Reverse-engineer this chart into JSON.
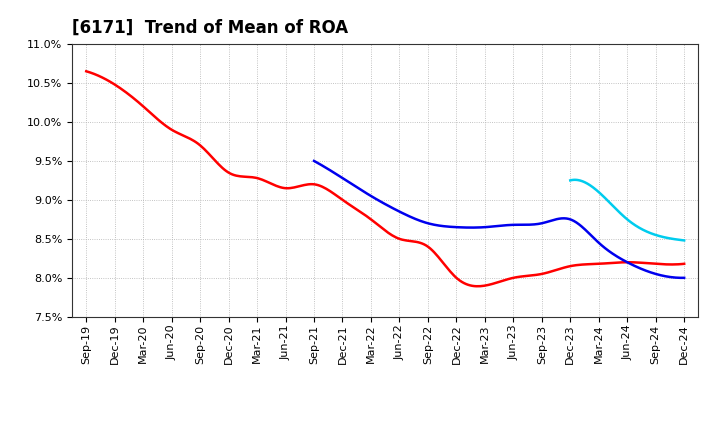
{
  "title": "[6171]  Trend of Mean of ROA",
  "ylim": [
    0.075,
    0.11
  ],
  "yticks": [
    0.075,
    0.08,
    0.085,
    0.09,
    0.095,
    0.1,
    0.105,
    0.11
  ],
  "background_color": "#ffffff",
  "grid_color": "#aaaaaa",
  "series": {
    "3 Years": {
      "color": "#ff0000",
      "x": [
        0,
        1,
        2,
        3,
        4,
        5,
        6,
        7,
        8,
        9,
        10,
        11,
        12,
        13,
        14,
        15,
        16,
        17,
        18,
        19,
        20,
        21
      ],
      "y": [
        0.1065,
        0.1048,
        0.102,
        0.099,
        0.097,
        0.0935,
        0.0928,
        0.0915,
        0.092,
        0.09,
        0.0875,
        0.085,
        0.084,
        0.08,
        0.079,
        0.08,
        0.0805,
        0.0815,
        0.0818,
        0.082,
        0.0818,
        0.0818
      ]
    },
    "5 Years": {
      "color": "#0000ee",
      "x": [
        8,
        9,
        10,
        11,
        12,
        13,
        14,
        15,
        16,
        17,
        18,
        19,
        20,
        21
      ],
      "y": [
        0.095,
        0.0928,
        0.0905,
        0.0885,
        0.087,
        0.0865,
        0.0865,
        0.0868,
        0.087,
        0.0875,
        0.0845,
        0.082,
        0.0805,
        0.08
      ]
    },
    "7 Years": {
      "color": "#00ccee",
      "x": [
        17,
        18,
        19,
        20,
        21
      ],
      "y": [
        0.0925,
        0.091,
        0.0875,
        0.0855,
        0.0848
      ]
    },
    "10 Years": {
      "color": "#008800",
      "x": [],
      "y": []
    }
  },
  "x_labels": [
    "Sep-19",
    "Dec-19",
    "Mar-20",
    "Jun-20",
    "Sep-20",
    "Dec-20",
    "Mar-21",
    "Jun-21",
    "Sep-21",
    "Dec-21",
    "Mar-22",
    "Jun-22",
    "Sep-22",
    "Dec-22",
    "Mar-23",
    "Jun-23",
    "Sep-23",
    "Dec-23",
    "Mar-24",
    "Jun-24",
    "Sep-24",
    "Dec-24"
  ],
  "title_fontsize": 12,
  "tick_fontsize": 8,
  "legend_fontsize": 9
}
